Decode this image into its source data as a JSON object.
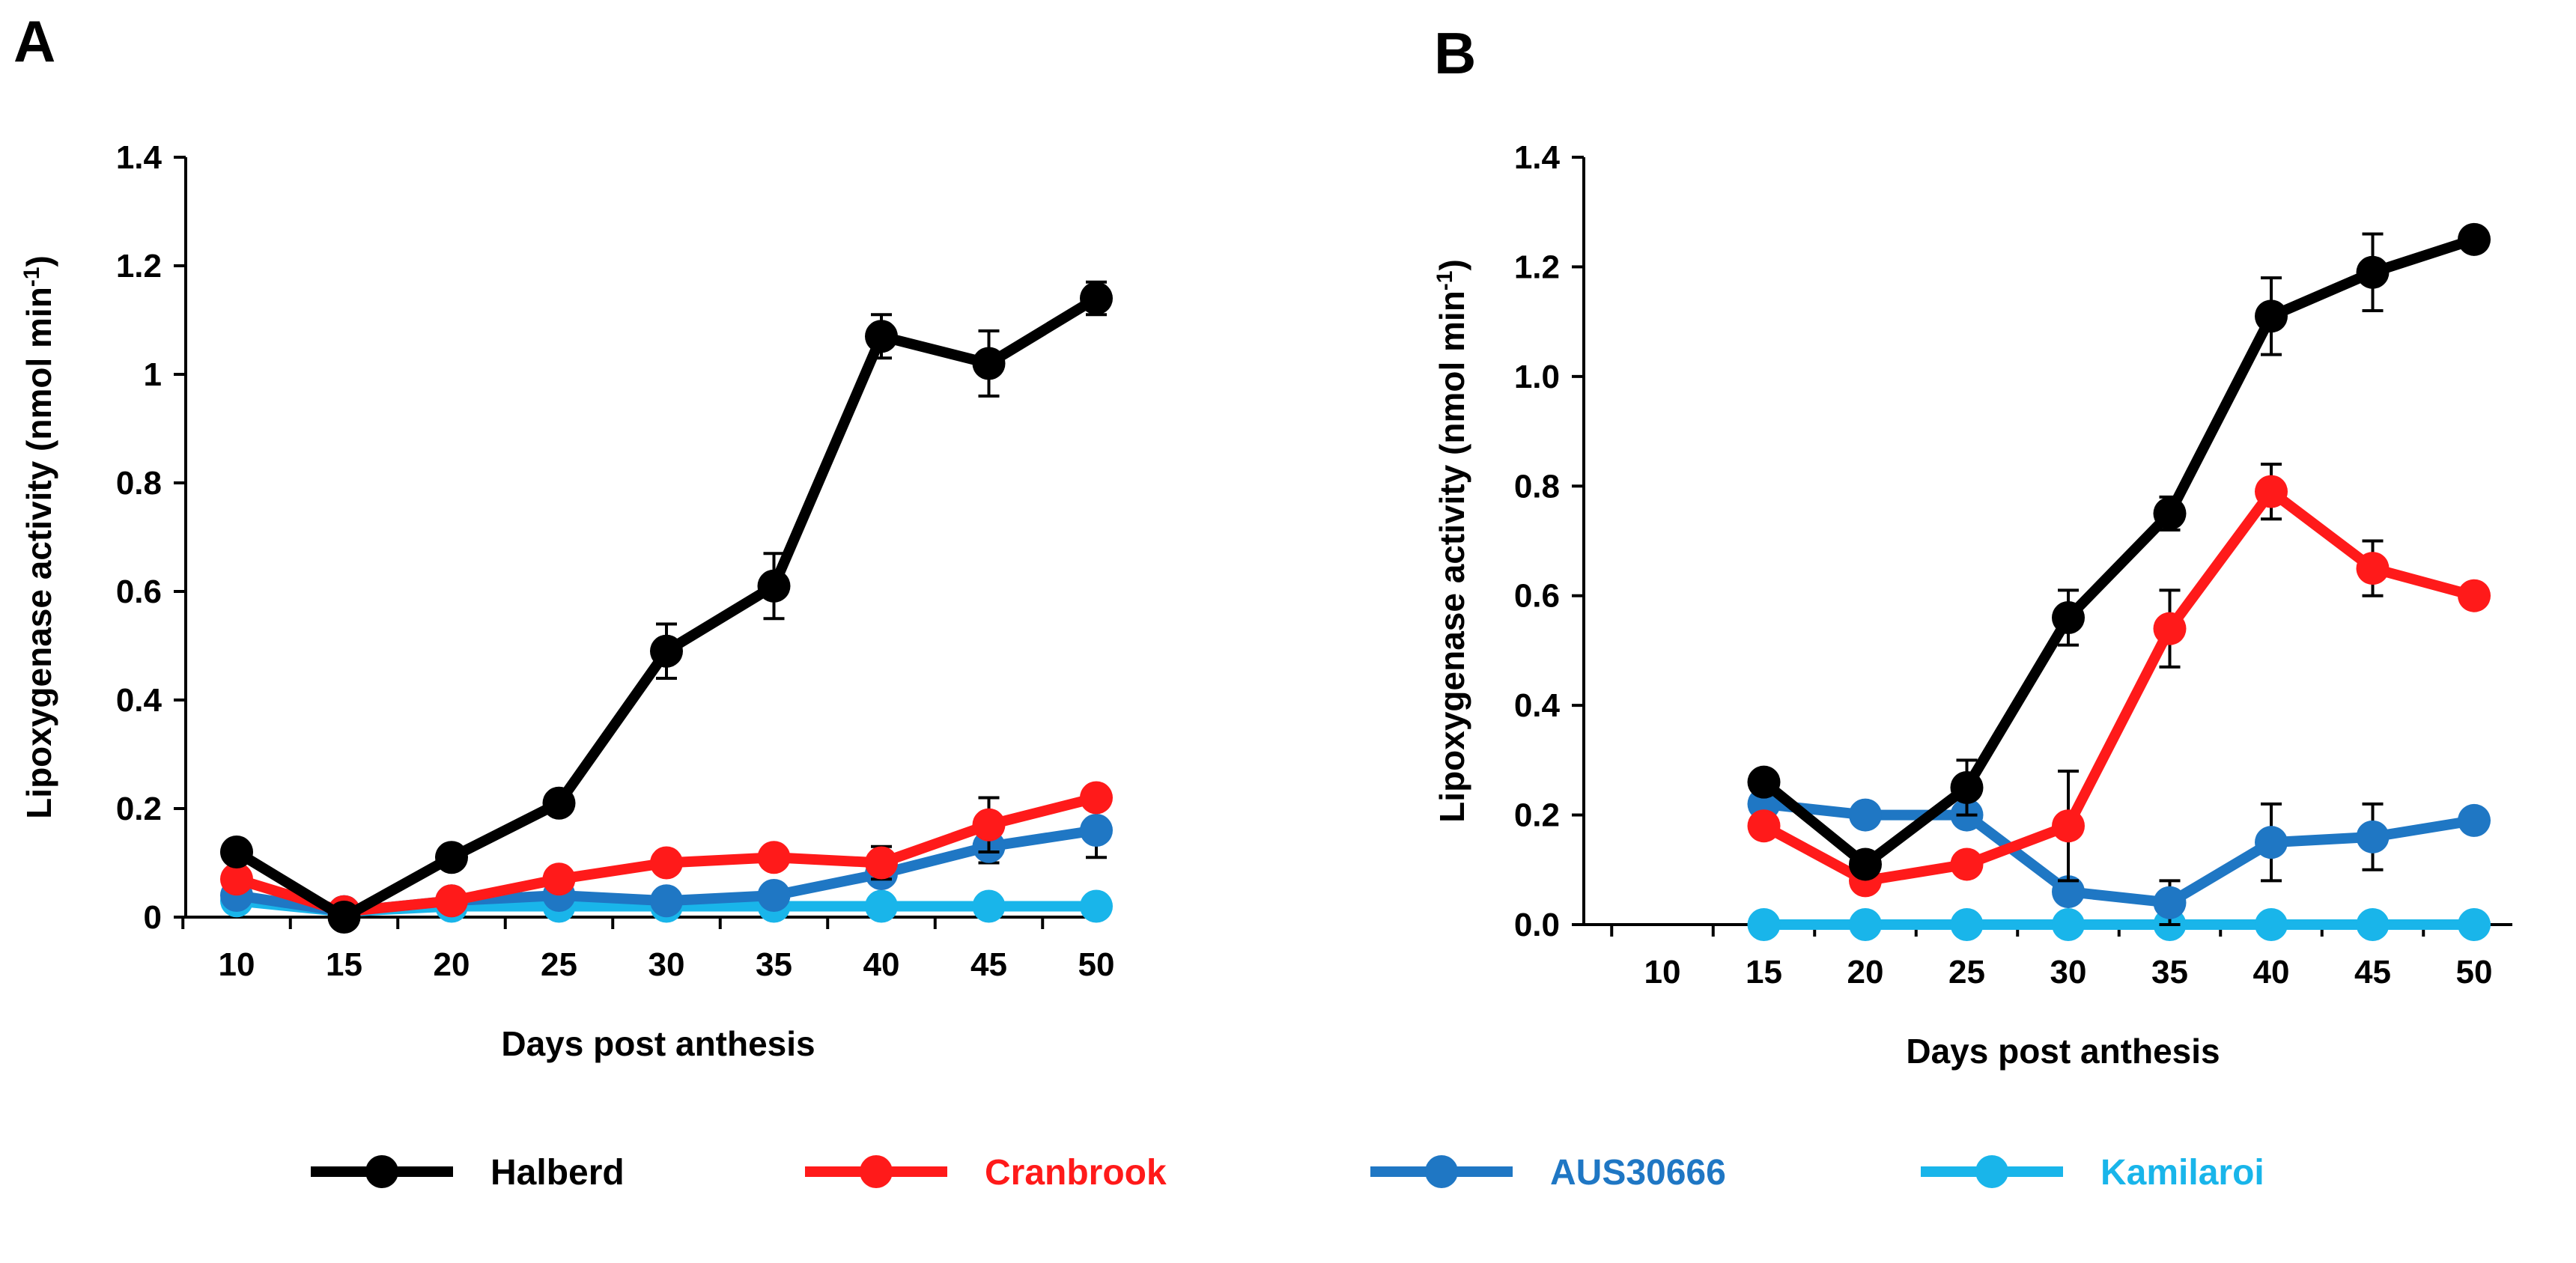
{
  "legend": [
    {
      "name": "Halberd",
      "color": "#000000",
      "text_color": "#000000"
    },
    {
      "name": "Cranbrook",
      "color": "#ff1a1a",
      "text_color": "#ff1a1a"
    },
    {
      "name": "AUS30666",
      "color": "#1f77c4",
      "text_color": "#1f77c4"
    },
    {
      "name": "Kamilaroi",
      "color": "#19b5ea",
      "text_color": "#19b5ea"
    }
  ],
  "chart_data": [
    {
      "type": "line",
      "panel": "A",
      "xlabel": "Days post anthesis",
      "ylabel": "Lipoxygenase activity (nmol min",
      "ylabel_sup": "-1",
      "ylabel_close": ")",
      "xlim": [
        10,
        50
      ],
      "x_ticks": [
        "10",
        "15",
        "20",
        "25",
        "30",
        "35",
        "40",
        "45",
        "50"
      ],
      "ylim": [
        0,
        1.4
      ],
      "y_ticks": [
        {
          "value": 0,
          "label": "0"
        },
        {
          "value": 0.2,
          "label": "0.2"
        },
        {
          "value": 0.4,
          "label": "0.4"
        },
        {
          "value": 0.6,
          "label": "0.6"
        },
        {
          "value": 0.8,
          "label": "0.8"
        },
        {
          "value": 1.0,
          "label": "1"
        },
        {
          "value": 1.2,
          "label": "1.2"
        },
        {
          "value": 1.4,
          "label": "1.4"
        }
      ],
      "series": [
        {
          "name": "Halberd",
          "color": "#000000",
          "x": [
            10,
            15,
            20,
            25,
            30,
            35,
            40,
            45,
            50
          ],
          "values": [
            0.12,
            0.0,
            0.11,
            0.21,
            0.49,
            0.61,
            1.07,
            1.02,
            1.14
          ],
          "errors": [
            0.01,
            0.005,
            0.02,
            0.02,
            0.05,
            0.06,
            0.04,
            0.06,
            0.03
          ]
        },
        {
          "name": "Cranbrook",
          "color": "#ff1a1a",
          "x": [
            10,
            15,
            20,
            25,
            30,
            35,
            40,
            45,
            50
          ],
          "values": [
            0.07,
            0.01,
            0.03,
            0.07,
            0.1,
            0.11,
            0.1,
            0.17,
            0.22
          ],
          "errors": [
            0.01,
            0.005,
            0.01,
            0.01,
            0.01,
            0.01,
            0.03,
            0.05,
            0.02
          ]
        },
        {
          "name": "AUS30666",
          "color": "#1f77c4",
          "x": [
            10,
            15,
            20,
            25,
            30,
            35,
            40,
            45,
            50
          ],
          "values": [
            0.04,
            0.01,
            0.03,
            0.04,
            0.03,
            0.04,
            0.08,
            0.13,
            0.16
          ],
          "errors": [
            0.01,
            0.005,
            0.01,
            0.01,
            0.01,
            0.01,
            0.02,
            0.03,
            0.05
          ]
        },
        {
          "name": "Kamilaroi",
          "color": "#19b5ea",
          "x": [
            10,
            15,
            20,
            25,
            30,
            35,
            40,
            45,
            50
          ],
          "values": [
            0.03,
            0.01,
            0.02,
            0.02,
            0.02,
            0.02,
            0.02,
            0.02,
            0.02
          ],
          "errors": [
            0.005,
            0.005,
            0.005,
            0.005,
            0.005,
            0.005,
            0.005,
            0.005,
            0.005
          ]
        }
      ]
    },
    {
      "type": "line",
      "panel": "B",
      "xlabel": "Days post anthesis",
      "ylabel": "Lipoxygenase activity (nmol min",
      "ylabel_sup": "-1",
      "ylabel_close": ")",
      "xlim": [
        10,
        50
      ],
      "x_ticks": [
        "10",
        "15",
        "20",
        "25",
        "30",
        "35",
        "40",
        "45",
        "50"
      ],
      "ylim": [
        0,
        1.4
      ],
      "y_ticks": [
        {
          "value": 0,
          "label": "0.0"
        },
        {
          "value": 0.2,
          "label": "0.2"
        },
        {
          "value": 0.4,
          "label": "0.4"
        },
        {
          "value": 0.6,
          "label": "0.6"
        },
        {
          "value": 0.8,
          "label": "0.8"
        },
        {
          "value": 1.0,
          "label": "1.0"
        },
        {
          "value": 1.2,
          "label": "1.2"
        },
        {
          "value": 1.4,
          "label": "1.4"
        }
      ],
      "series": [
        {
          "name": "Halberd",
          "color": "#000000",
          "x": [
            15,
            20,
            25,
            30,
            35,
            40,
            45,
            50
          ],
          "values": [
            0.26,
            0.11,
            0.25,
            0.56,
            0.75,
            1.11,
            1.19,
            1.25
          ],
          "errors": [
            0.01,
            0.02,
            0.05,
            0.05,
            0.03,
            0.07,
            0.07,
            0.01
          ]
        },
        {
          "name": "Cranbrook",
          "color": "#ff1a1a",
          "x": [
            15,
            20,
            25,
            30,
            35,
            40,
            45,
            50
          ],
          "values": [
            0.18,
            0.08,
            0.11,
            0.18,
            0.54,
            0.79,
            0.65,
            0.6
          ],
          "errors": [
            0.01,
            0.02,
            0.01,
            0.1,
            0.07,
            0.05,
            0.05,
            0.01
          ]
        },
        {
          "name": "AUS30666",
          "color": "#1f77c4",
          "x": [
            15,
            20,
            25,
            30,
            35,
            40,
            45,
            50
          ],
          "values": [
            0.22,
            0.2,
            0.2,
            0.06,
            0.04,
            0.15,
            0.16,
            0.19
          ],
          "errors": [
            0.01,
            0.01,
            0.01,
            0.01,
            0.04,
            0.07,
            0.06,
            0.01
          ]
        },
        {
          "name": "Kamilaroi",
          "color": "#19b5ea",
          "x": [
            15,
            20,
            25,
            30,
            35,
            40,
            45,
            50
          ],
          "values": [
            0.0,
            0.0,
            0.0,
            0.0,
            0.0,
            0.0,
            0.0,
            0.0
          ],
          "errors": [
            0,
            0,
            0,
            0,
            0,
            0,
            0,
            0
          ]
        }
      ]
    }
  ]
}
